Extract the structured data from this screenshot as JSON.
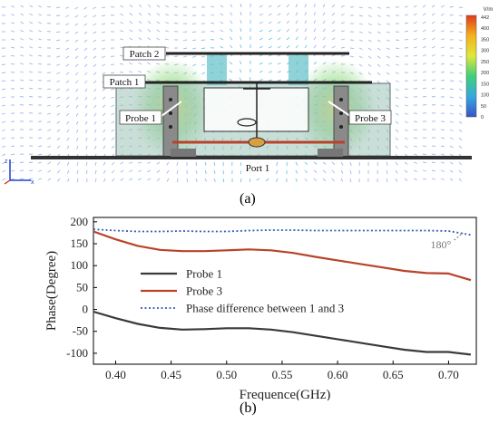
{
  "panel_a": {
    "caption": "(a)",
    "labels": {
      "patch2": "Patch 2",
      "patch1": "Patch 1",
      "probe1": "Probe 1",
      "probe3": "Probe 3",
      "port1": "Port 1"
    },
    "colorbar": {
      "unit": "V/m",
      "ticks": [
        "442",
        "400",
        "350",
        "300",
        "250",
        "200",
        "150",
        "100",
        "50",
        "0"
      ]
    }
  },
  "panel_b": {
    "caption": "(b)"
  },
  "chart_data": {
    "type": "line",
    "title": "",
    "xlabel": "Frequence(GHz)",
    "ylabel": "Phase(Degree)",
    "xlim": [
      0.38,
      0.725
    ],
    "ylim": [
      -125,
      210
    ],
    "xticks": [
      0.4,
      0.45,
      0.5,
      0.55,
      0.6,
      0.65,
      0.7
    ],
    "xtick_labels": [
      "0.40",
      "0.45",
      "0.50",
      "0.55",
      "0.60",
      "0.65",
      "0.70"
    ],
    "yticks": [
      -100,
      -50,
      0,
      50,
      100,
      150,
      200
    ],
    "ytick_labels": [
      "-100",
      "-50",
      "0",
      "50",
      "100",
      "150",
      "200"
    ],
    "grid": false,
    "legend_position": "center-left",
    "annotation": "180°",
    "series": [
      {
        "name": "Probe 1",
        "color": "#3a3a3a",
        "style": "solid",
        "x": [
          0.38,
          0.4,
          0.42,
          0.44,
          0.46,
          0.48,
          0.5,
          0.52,
          0.54,
          0.56,
          0.58,
          0.6,
          0.62,
          0.64,
          0.66,
          0.68,
          0.7,
          0.72
        ],
        "y": [
          -5,
          -20,
          -33,
          -42,
          -46,
          -45,
          -43,
          -43,
          -46,
          -52,
          -60,
          -68,
          -76,
          -84,
          -92,
          -97,
          -97,
          -103
        ]
      },
      {
        "name": "Probe 3",
        "color": "#b8432a",
        "style": "solid",
        "x": [
          0.38,
          0.4,
          0.42,
          0.44,
          0.46,
          0.48,
          0.5,
          0.52,
          0.54,
          0.56,
          0.58,
          0.6,
          0.62,
          0.64,
          0.66,
          0.68,
          0.7,
          0.72
        ],
        "y": [
          178,
          160,
          145,
          136,
          133,
          133,
          135,
          137,
          135,
          129,
          120,
          112,
          104,
          96,
          88,
          83,
          82,
          67
        ]
      },
      {
        "name": "Phase difference between 1 and 3",
        "color": "#2f5fb3",
        "style": "dotted",
        "x": [
          0.38,
          0.4,
          0.42,
          0.44,
          0.46,
          0.48,
          0.5,
          0.52,
          0.54,
          0.56,
          0.58,
          0.6,
          0.62,
          0.64,
          0.66,
          0.68,
          0.7,
          0.72
        ],
        "y": [
          183,
          180,
          178,
          178,
          179,
          178,
          178,
          180,
          181,
          181,
          180,
          180,
          180,
          180,
          180,
          180,
          179,
          170
        ]
      }
    ]
  }
}
